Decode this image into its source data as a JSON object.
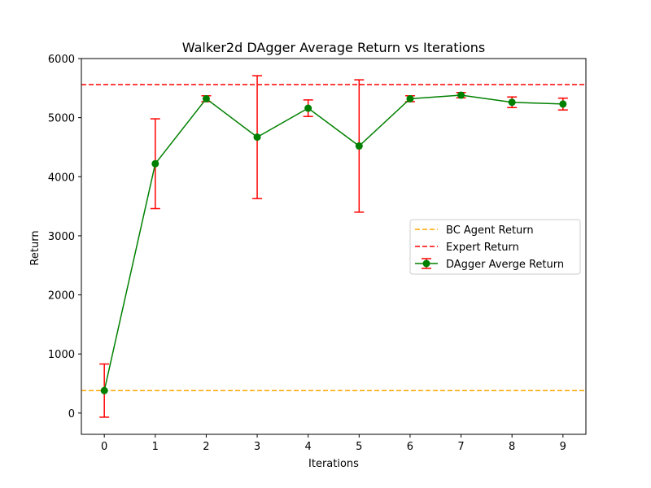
{
  "chart_data": {
    "type": "line",
    "title": "Walker2d DAgger Average Return vs Iterations",
    "xlabel": "Iterations",
    "ylabel": "Return",
    "xlim": [
      -0.45,
      9.45
    ],
    "ylim": [
      -360,
      6000
    ],
    "x_ticks": [
      0,
      1,
      2,
      3,
      4,
      5,
      6,
      7,
      8,
      9
    ],
    "y_ticks": [
      0,
      1000,
      2000,
      3000,
      4000,
      5000,
      6000
    ],
    "grid": false,
    "legend_position": "center-right",
    "series": [
      {
        "name": " DAgger Averge Return",
        "kind": "errorbar",
        "color": "#008000",
        "error_color": "#ff0000",
        "x": [
          0,
          1,
          2,
          3,
          4,
          5,
          6,
          7,
          8,
          9
        ],
        "y": [
          380,
          4220,
          5320,
          4670,
          5160,
          4520,
          5320,
          5380,
          5260,
          5230
        ],
        "err": [
          450,
          760,
          50,
          1040,
          140,
          1120,
          50,
          45,
          90,
          100
        ]
      }
    ],
    "reference_lines": [
      {
        "name": "BC Agent Return",
        "y": 380,
        "color": "#ffa500",
        "style": "dashed"
      },
      {
        "name": "Expert Return",
        "y": 5560,
        "color": "#ff0000",
        "style": "dashed"
      }
    ]
  }
}
